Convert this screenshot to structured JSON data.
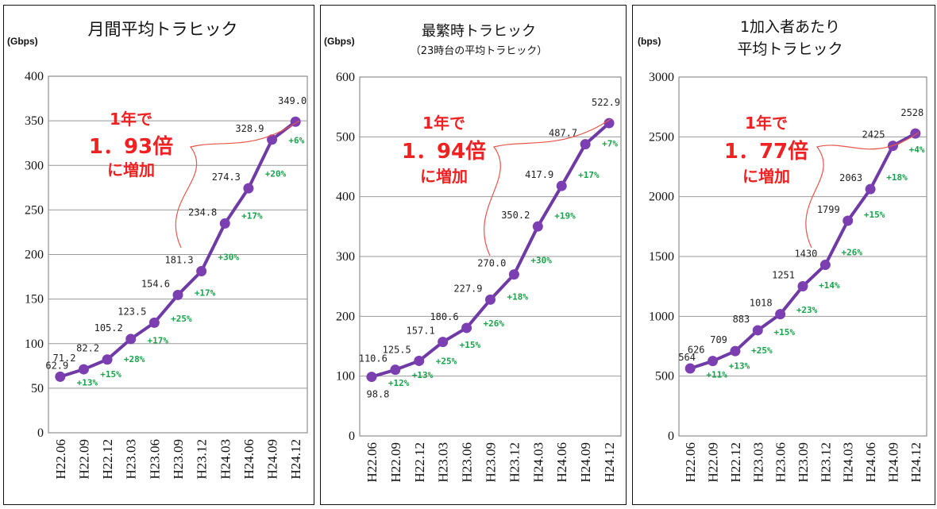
{
  "colors": {
    "line": "#6f3aa5",
    "point": "#7b3fb2",
    "growth": "#19a34a",
    "annotation": "#ee2222",
    "bracket": "#e6564b",
    "grid": "#999999"
  },
  "chart_data": [
    {
      "type": "line",
      "title_lines": [
        "月間平均トラヒック"
      ],
      "unit": "(Gbps)",
      "categories": [
        "H22.06",
        "H22.09",
        "H22.12",
        "H23.03",
        "H23.06",
        "H23.09",
        "H23.12",
        "H24.03",
        "H24.06",
        "H24.09",
        "H24.12"
      ],
      "values": [
        62.9,
        71.2,
        82.2,
        105.2,
        123.5,
        154.6,
        181.3,
        234.8,
        274.3,
        328.9,
        349.0
      ],
      "value_labels": [
        "62.9",
        "71.2",
        "82.2",
        "105.2",
        "123.5",
        "154.6",
        "181.3",
        "234.8",
        "274.3",
        "328.9",
        "349.0"
      ],
      "growth_labels": [
        "+13%",
        "+15%",
        "+28%",
        "+17%",
        "+25%",
        "+17%",
        "+30%",
        "+17%",
        "+20%",
        "+6%"
      ],
      "ylim": [
        0,
        400
      ],
      "yticks": [
        0,
        50,
        100,
        150,
        200,
        250,
        300,
        350,
        400
      ],
      "annotation": [
        "1年で",
        "1．93倍",
        "に増加"
      ],
      "grid": true
    },
    {
      "type": "line",
      "title_lines": [
        "最繁時トラヒック",
        "（23時台の平均トラヒック）"
      ],
      "unit": "(Gbps)",
      "categories": [
        "H22.06",
        "H22.09",
        "H22.12",
        "H23.03",
        "H23.06",
        "H23.09",
        "H23.12",
        "H24.03",
        "H24.06",
        "H24.09",
        "H24.12"
      ],
      "values": [
        98.8,
        110.6,
        125.5,
        157.1,
        180.6,
        227.9,
        270.0,
        350.2,
        417.9,
        487.7,
        522.9
      ],
      "value_labels": [
        "98.8",
        "110.6",
        "125.5",
        "157.1",
        "180.6",
        "227.9",
        "270.0",
        "350.2",
        "417.9",
        "487.7",
        "522.9"
      ],
      "growth_labels": [
        "+12%",
        "+13%",
        "+25%",
        "+15%",
        "+26%",
        "+18%",
        "+30%",
        "+19%",
        "+17%",
        "+7%"
      ],
      "ylim": [
        0,
        600
      ],
      "yticks": [
        0,
        100,
        200,
        300,
        400,
        500,
        600
      ],
      "annotation": [
        "1年で",
        "1．94倍",
        "に増加"
      ],
      "grid": true
    },
    {
      "type": "line",
      "title_lines": [
        "1加入者あたり",
        "平均トラヒック"
      ],
      "unit": "(bps)",
      "categories": [
        "H22.06",
        "H22.09",
        "H22.12",
        "H23.03",
        "H23.06",
        "H23.09",
        "H23.12",
        "H24.03",
        "H24.06",
        "H24.09",
        "H24.12"
      ],
      "values": [
        564,
        626,
        709,
        883,
        1018,
        1251,
        1430,
        1799,
        2063,
        2425,
        2528
      ],
      "value_labels": [
        "564",
        "626",
        "709",
        "883",
        "1018",
        "1251",
        "1430",
        "1799",
        "2063",
        "2425",
        "2528"
      ],
      "growth_labels": [
        "+11%",
        "+13%",
        "+25%",
        "+15%",
        "+23%",
        "+14%",
        "+26%",
        "+15%",
        "+18%",
        "+4%"
      ],
      "ylim": [
        0,
        3000
      ],
      "yticks": [
        0,
        500,
        1000,
        1500,
        2000,
        2500,
        3000
      ],
      "annotation": [
        "1年で",
        "1．77倍",
        "に増加"
      ],
      "grid": true
    }
  ]
}
